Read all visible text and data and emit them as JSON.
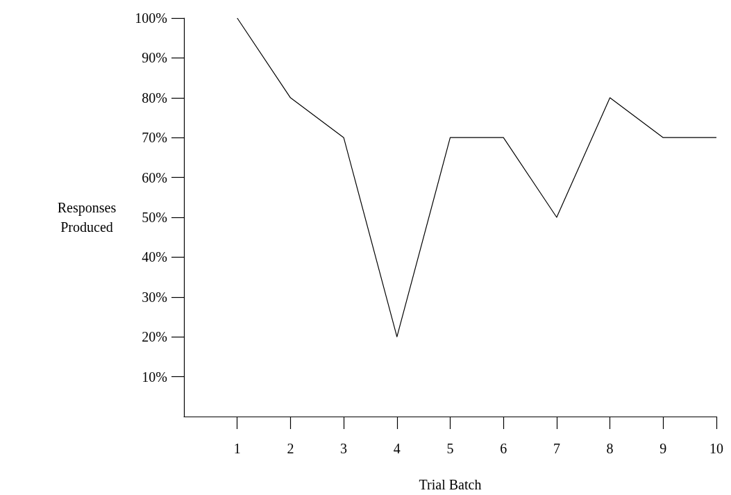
{
  "chart_data": {
    "type": "line",
    "xlabel": "Trial Batch",
    "ylabel": "Responses Produced",
    "x": [
      1,
      2,
      3,
      4,
      5,
      6,
      7,
      8,
      9,
      10
    ],
    "series": [
      {
        "color": "#000000",
        "values": [
          100,
          80,
          70,
          20,
          70,
          70,
          50,
          80,
          70,
          70
        ]
      }
    ],
    "xlim": [
      0,
      10
    ],
    "xticks": [
      1,
      2,
      3,
      4,
      5,
      6,
      7,
      8,
      9,
      10
    ],
    "ylim": [
      0,
      100
    ],
    "yticks": [
      {
        "value": 10,
        "label": "10%"
      },
      {
        "value": 20,
        "label": "20%"
      },
      {
        "value": 30,
        "label": "30%"
      },
      {
        "value": 40,
        "label": "40%"
      },
      {
        "value": 50,
        "label": "50%"
      },
      {
        "value": 60,
        "label": "60%"
      },
      {
        "value": 70,
        "label": "70%"
      },
      {
        "value": 80,
        "label": "80%"
      },
      {
        "value": 90,
        "label": "90%"
      },
      {
        "value": 100,
        "label": "100%"
      }
    ],
    "grid": false,
    "marker": "none",
    "line_style": "solid"
  }
}
